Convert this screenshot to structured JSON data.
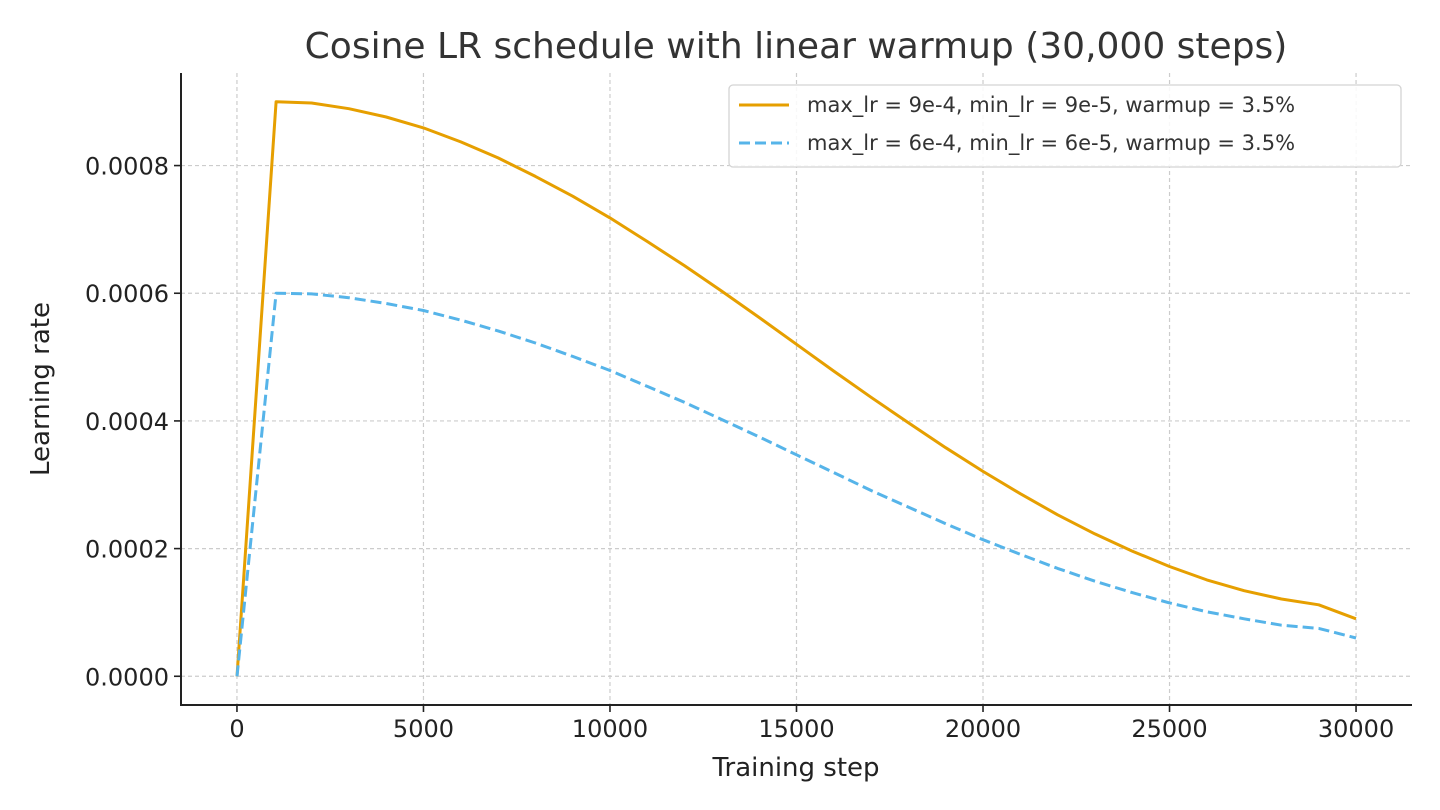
{
  "chart_data": {
    "type": "line",
    "title": "Cosine LR schedule with linear warmup (30,000 steps)",
    "xlabel": "Training step",
    "ylabel": "Learning rate",
    "xlim": [
      -1500,
      31500
    ],
    "ylim": [
      -4.5e-05,
      0.000945
    ],
    "xticks": [
      0,
      5000,
      10000,
      15000,
      20000,
      25000,
      30000
    ],
    "xtick_labels": [
      "0",
      "5000",
      "10000",
      "15000",
      "20000",
      "25000",
      "30000"
    ],
    "yticks": [
      0.0,
      0.0002,
      0.0004,
      0.0006,
      0.0008
    ],
    "ytick_labels": [
      "0.0000",
      "0.0002",
      "0.0004",
      "0.0006",
      "0.0008"
    ],
    "grid": true,
    "legend_position": "top-right",
    "series": [
      {
        "name": "max_lr = 9e-4, min_lr = 9e-5, warmup = 3.5%",
        "color": "#E69F00",
        "line_style": "solid",
        "x": [
          0,
          1050,
          2000,
          3000,
          4000,
          5000,
          6000,
          7000,
          8000,
          9000,
          10000,
          11000,
          12000,
          13000,
          14000,
          15000,
          16000,
          17000,
          18000,
          19000,
          20000,
          21000,
          22000,
          23000,
          24000,
          25000,
          26000,
          27000,
          28000,
          29000,
          30000
        ],
        "y": [
          0.0,
          0.0009,
          0.000898,
          0.000889,
          0.000876,
          0.000859,
          0.000837,
          0.000812,
          0.000783,
          0.000752,
          0.000718,
          0.000681,
          0.000643,
          0.000603,
          0.000562,
          0.00052,
          0.000478,
          0.000437,
          0.000397,
          0.000358,
          0.000321,
          0.000286,
          0.000253,
          0.000223,
          0.000196,
          0.000172,
          0.000151,
          0.000134,
          0.000121,
          0.000112,
          9e-05
        ]
      },
      {
        "name": "max_lr = 6e-4, min_lr = 6e-5, warmup = 3.5%",
        "color": "#56B4E9",
        "line_style": "dashed",
        "x": [
          0,
          1050,
          2000,
          3000,
          4000,
          5000,
          6000,
          7000,
          8000,
          9000,
          10000,
          11000,
          12000,
          13000,
          14000,
          15000,
          16000,
          17000,
          18000,
          19000,
          20000,
          21000,
          22000,
          23000,
          24000,
          25000,
          26000,
          27000,
          28000,
          29000,
          30000
        ],
        "y": [
          0.0,
          0.0006,
          0.000599,
          0.000593,
          0.000584,
          0.000573,
          0.000558,
          0.000541,
          0.000522,
          0.000501,
          0.000479,
          0.000454,
          0.000429,
          0.000402,
          0.000375,
          0.000347,
          0.000319,
          0.000291,
          0.000265,
          0.000239,
          0.000214,
          0.000191,
          0.000169,
          0.000149,
          0.000131,
          0.000115,
          0.000101,
          9e-05,
          8e-05,
          7.5e-05,
          6e-05
        ]
      }
    ]
  }
}
